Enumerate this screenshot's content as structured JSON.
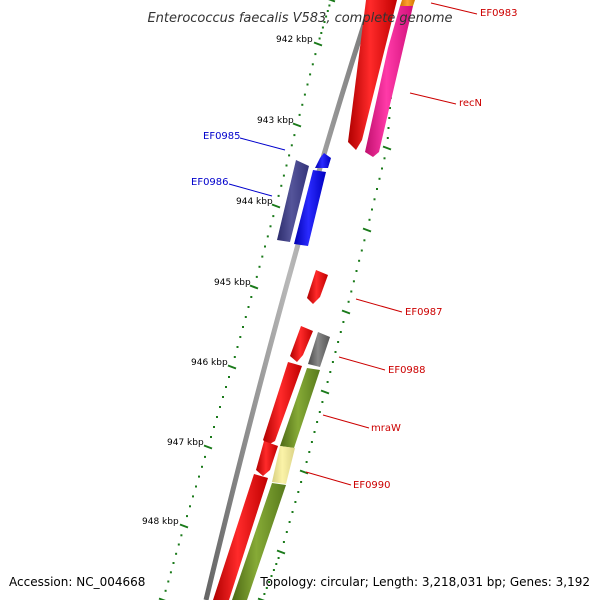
{
  "title": "Enterococcus faecalis V583, complete genome",
  "ticks": [
    "942 kbp",
    "943 kbp",
    "944 kbp",
    "945 kbp",
    "946 kbp",
    "947 kbp",
    "948 kbp"
  ],
  "gene_labels": [
    {
      "name": "EF0983",
      "color": "#cc0000"
    },
    {
      "name": "recN",
      "color": "#cc0000"
    },
    {
      "name": "EF0985",
      "color": "#0000cc"
    },
    {
      "name": "EF0986",
      "color": "#0000cc"
    },
    {
      "name": "EF0987",
      "color": "#cc0000"
    },
    {
      "name": "EF0988",
      "color": "#cc0000"
    },
    {
      "name": "mraW",
      "color": "#cc0000"
    },
    {
      "name": "EF0990",
      "color": "#cc0000"
    }
  ],
  "footer": {
    "accession": "Accession: NC_004668",
    "summary": "Topology: circular; Length: 3,218,031 bp; Genes: 3,192"
  },
  "colors": {
    "forward_gene": "#ff0000",
    "reverse_gene": "#0000ff",
    "reverse_gene_dark": "#3c3c8c",
    "pink_gene": "#ff1493",
    "olive_gene": "#6b8e23",
    "pale_gene": "#f0e68c",
    "grey_gene": "#666666",
    "backbone": "#888888",
    "tick": "#1a7a1a"
  }
}
